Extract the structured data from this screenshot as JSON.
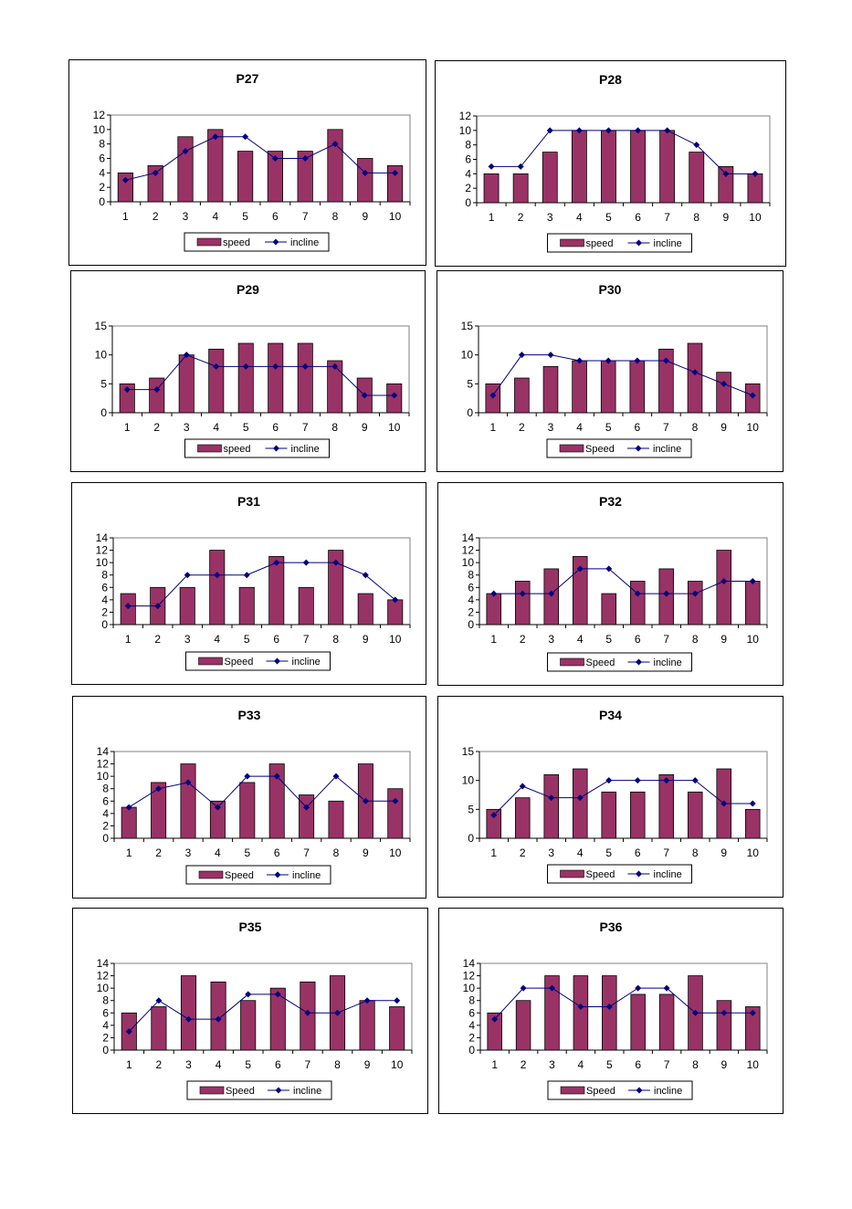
{
  "style": {
    "bar_color": "#993366",
    "line_color": "#000080",
    "axis_color": "#000000",
    "background": "#ffffff"
  },
  "chart_data": [
    {
      "type": "bar",
      "title": "P27",
      "categories": [
        "1",
        "2",
        "3",
        "4",
        "5",
        "6",
        "7",
        "8",
        "9",
        "10"
      ],
      "series": [
        {
          "name": "speed",
          "kind": "bar",
          "values": [
            4,
            5,
            9,
            10,
            7,
            7,
            7,
            10,
            6,
            5
          ]
        },
        {
          "name": "incline",
          "kind": "line",
          "values": [
            3,
            4,
            7,
            9,
            9,
            6,
            6,
            8,
            4,
            4
          ]
        }
      ],
      "ylim": [
        0,
        12
      ],
      "yticks": [
        0,
        2,
        4,
        6,
        8,
        10,
        12
      ],
      "legend": "bottom",
      "grid": false
    },
    {
      "type": "bar",
      "title": "P28",
      "categories": [
        "1",
        "2",
        "3",
        "4",
        "5",
        "6",
        "7",
        "8",
        "9",
        "10"
      ],
      "series": [
        {
          "name": "speed",
          "kind": "bar",
          "values": [
            4,
            4,
            7,
            10,
            10,
            10,
            10,
            7,
            5,
            4
          ]
        },
        {
          "name": "incline",
          "kind": "line",
          "values": [
            5,
            5,
            10,
            10,
            10,
            10,
            10,
            8,
            4,
            4
          ]
        }
      ],
      "ylim": [
        0,
        12
      ],
      "yticks": [
        0,
        2,
        4,
        6,
        8,
        10,
        12
      ],
      "legend": "bottom",
      "grid": false
    },
    {
      "type": "bar",
      "title": "P29",
      "categories": [
        "1",
        "2",
        "3",
        "4",
        "5",
        "6",
        "7",
        "8",
        "9",
        "10"
      ],
      "series": [
        {
          "name": "speed",
          "kind": "bar",
          "values": [
            5,
            6,
            10,
            11,
            12,
            12,
            12,
            9,
            6,
            5
          ]
        },
        {
          "name": "incline",
          "kind": "line",
          "values": [
            4,
            4,
            10,
            8,
            8,
            8,
            8,
            8,
            3,
            3
          ]
        }
      ],
      "ylim": [
        0,
        15
      ],
      "yticks": [
        0,
        5,
        10,
        15
      ],
      "legend": "bottom",
      "grid": false
    },
    {
      "type": "bar",
      "title": "P30",
      "categories": [
        "1",
        "2",
        "3",
        "4",
        "5",
        "6",
        "7",
        "8",
        "9",
        "10"
      ],
      "series": [
        {
          "name": "Speed",
          "kind": "bar",
          "values": [
            5,
            6,
            8,
            9,
            9,
            9,
            11,
            12,
            7,
            5
          ]
        },
        {
          "name": "incline",
          "kind": "line",
          "values": [
            3,
            10,
            10,
            9,
            9,
            9,
            9,
            7,
            5,
            3
          ]
        }
      ],
      "ylim": [
        0,
        15
      ],
      "yticks": [
        0,
        5,
        10,
        15
      ],
      "legend": "bottom",
      "grid": false
    },
    {
      "type": "bar",
      "title": "P31",
      "categories": [
        "1",
        "2",
        "3",
        "4",
        "5",
        "6",
        "7",
        "8",
        "9",
        "10"
      ],
      "series": [
        {
          "name": "Speed",
          "kind": "bar",
          "values": [
            5,
            6,
            6,
            12,
            6,
            11,
            6,
            12,
            5,
            4
          ]
        },
        {
          "name": "incline",
          "kind": "line",
          "values": [
            3,
            3,
            8,
            8,
            8,
            10,
            10,
            10,
            8,
            4
          ]
        }
      ],
      "ylim": [
        0,
        14
      ],
      "yticks": [
        0,
        2,
        4,
        6,
        8,
        10,
        12,
        14
      ],
      "legend": "bottom",
      "grid": false
    },
    {
      "type": "bar",
      "title": "P32",
      "categories": [
        "1",
        "2",
        "3",
        "4",
        "5",
        "6",
        "7",
        "8",
        "9",
        "10"
      ],
      "series": [
        {
          "name": "Speed",
          "kind": "bar",
          "values": [
            5,
            7,
            9,
            11,
            5,
            7,
            9,
            7,
            12,
            7
          ]
        },
        {
          "name": "incline",
          "kind": "line",
          "values": [
            5,
            5,
            5,
            9,
            9,
            5,
            5,
            5,
            7,
            7
          ]
        }
      ],
      "ylim": [
        0,
        14
      ],
      "yticks": [
        0,
        2,
        4,
        6,
        8,
        10,
        12,
        14
      ],
      "legend": "bottom",
      "grid": false
    },
    {
      "type": "bar",
      "title": "P33",
      "categories": [
        "1",
        "2",
        "3",
        "4",
        "5",
        "6",
        "7",
        "8",
        "9",
        "10"
      ],
      "series": [
        {
          "name": "Speed",
          "kind": "bar",
          "values": [
            5,
            9,
            12,
            6,
            9,
            12,
            7,
            6,
            12,
            8
          ]
        },
        {
          "name": "incline",
          "kind": "line",
          "values": [
            5,
            8,
            9,
            5,
            10,
            10,
            5,
            10,
            6,
            6
          ]
        }
      ],
      "ylim": [
        0,
        14
      ],
      "yticks": [
        0,
        2,
        4,
        6,
        8,
        10,
        12,
        14
      ],
      "legend": "bottom",
      "grid": false
    },
    {
      "type": "bar",
      "title": "P34",
      "categories": [
        "1",
        "2",
        "3",
        "4",
        "5",
        "6",
        "7",
        "8",
        "9",
        "10"
      ],
      "series": [
        {
          "name": "Speed",
          "kind": "bar",
          "values": [
            5,
            7,
            11,
            12,
            8,
            8,
            11,
            8,
            12,
            5
          ]
        },
        {
          "name": "incline",
          "kind": "line",
          "values": [
            4,
            9,
            7,
            7,
            10,
            10,
            10,
            10,
            6,
            6
          ]
        }
      ],
      "ylim": [
        0,
        15
      ],
      "yticks": [
        0,
        5,
        10,
        15
      ],
      "legend": "bottom",
      "grid": false
    },
    {
      "type": "bar",
      "title": "P35",
      "categories": [
        "1",
        "2",
        "3",
        "4",
        "5",
        "6",
        "7",
        "8",
        "9",
        "10"
      ],
      "series": [
        {
          "name": "Speed",
          "kind": "bar",
          "values": [
            6,
            7,
            12,
            11,
            8,
            10,
            11,
            12,
            8,
            7
          ]
        },
        {
          "name": "incline",
          "kind": "line",
          "values": [
            3,
            8,
            5,
            5,
            9,
            9,
            6,
            6,
            8,
            8
          ]
        }
      ],
      "ylim": [
        0,
        14
      ],
      "yticks": [
        0,
        2,
        4,
        6,
        8,
        10,
        12,
        14
      ],
      "legend": "bottom",
      "grid": false
    },
    {
      "type": "bar",
      "title": "P36",
      "categories": [
        "1",
        "2",
        "3",
        "4",
        "5",
        "6",
        "7",
        "8",
        "9",
        "10"
      ],
      "series": [
        {
          "name": "Speed",
          "kind": "bar",
          "values": [
            6,
            8,
            12,
            12,
            12,
            9,
            9,
            12,
            8,
            7
          ]
        },
        {
          "name": "incline",
          "kind": "line",
          "values": [
            5,
            10,
            10,
            7,
            7,
            10,
            10,
            6,
            6,
            6
          ]
        }
      ],
      "ylim": [
        0,
        14
      ],
      "yticks": [
        0,
        2,
        4,
        6,
        8,
        10,
        12,
        14
      ],
      "legend": "bottom",
      "grid": false
    }
  ]
}
